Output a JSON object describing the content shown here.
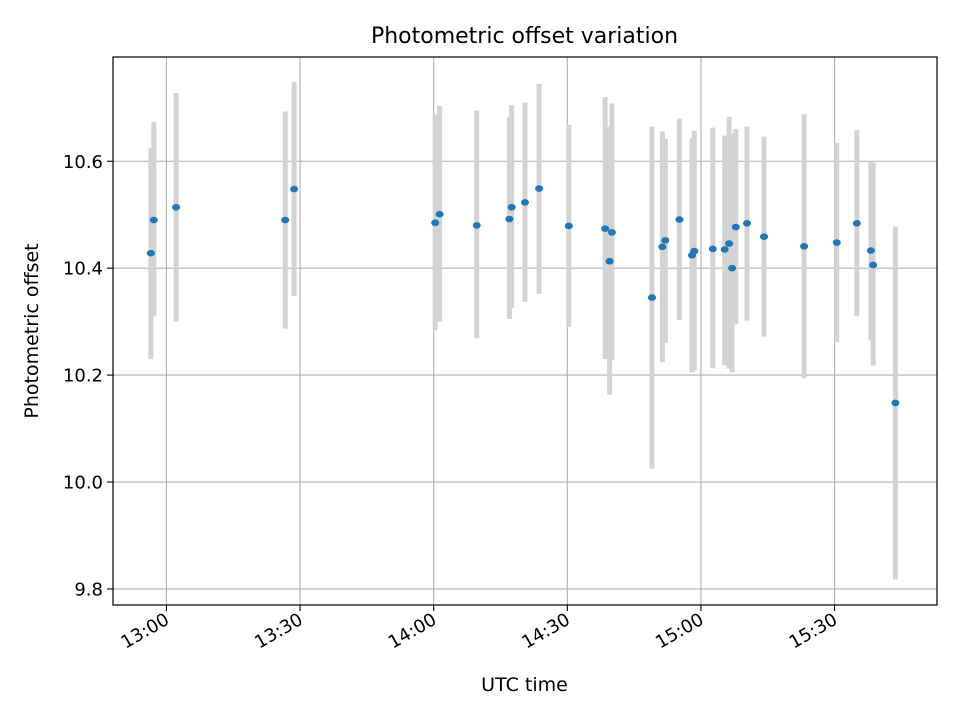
{
  "chart_data": {
    "type": "scatter",
    "title": "Photometric offset variation",
    "xlabel": "UTC time",
    "ylabel": "Photometric offset",
    "xlim": [
      "12:48",
      "15:53"
    ],
    "ylim": [
      9.77,
      10.795
    ],
    "grid": true,
    "x_ticks": [
      "13:00",
      "13:30",
      "14:00",
      "14:30",
      "15:00",
      "15:30"
    ],
    "y_ticks": [
      "9.8",
      "10.0",
      "10.2",
      "10.4",
      "10.6"
    ],
    "errorbar_color": "#d3d3d3",
    "marker_color": "#1f77b4",
    "points": [
      {
        "t": "12:56:30",
        "y": 10.428,
        "lo": 10.23,
        "hi": 10.625
      },
      {
        "t": "12:57:10",
        "y": 10.49,
        "lo": 10.31,
        "hi": 10.673
      },
      {
        "t": "13:02:10",
        "y": 10.514,
        "lo": 10.3,
        "hi": 10.728
      },
      {
        "t": "13:26:40",
        "y": 10.49,
        "lo": 10.287,
        "hi": 10.693
      },
      {
        "t": "13:28:40",
        "y": 10.548,
        "lo": 10.348,
        "hi": 10.748
      },
      {
        "t": "14:00:20",
        "y": 10.485,
        "lo": 10.284,
        "hi": 10.688
      },
      {
        "t": "14:01:20",
        "y": 10.501,
        "lo": 10.3,
        "hi": 10.703
      },
      {
        "t": "14:09:40",
        "y": 10.48,
        "lo": 10.269,
        "hi": 10.695
      },
      {
        "t": "14:17:00",
        "y": 10.492,
        "lo": 10.305,
        "hi": 10.683
      },
      {
        "t": "14:17:30",
        "y": 10.514,
        "lo": 10.325,
        "hi": 10.705
      },
      {
        "t": "14:20:30",
        "y": 10.523,
        "lo": 10.337,
        "hi": 10.71
      },
      {
        "t": "14:23:40",
        "y": 10.549,
        "lo": 10.352,
        "hi": 10.745
      },
      {
        "t": "14:30:20",
        "y": 10.479,
        "lo": 10.29,
        "hi": 10.668
      },
      {
        "t": "14:38:30",
        "y": 10.474,
        "lo": 10.23,
        "hi": 10.72
      },
      {
        "t": "14:39:30",
        "y": 10.413,
        "lo": 10.163,
        "hi": 10.665
      },
      {
        "t": "14:40:00",
        "y": 10.467,
        "lo": 10.228,
        "hi": 10.708
      },
      {
        "t": "14:49:00",
        "y": 10.345,
        "lo": 10.025,
        "hi": 10.665
      },
      {
        "t": "14:51:20",
        "y": 10.44,
        "lo": 10.224,
        "hi": 10.656
      },
      {
        "t": "14:52:00",
        "y": 10.452,
        "lo": 10.26,
        "hi": 10.642
      },
      {
        "t": "14:55:10",
        "y": 10.491,
        "lo": 10.303,
        "hi": 10.68
      },
      {
        "t": "14:58:00",
        "y": 10.424,
        "lo": 10.205,
        "hi": 10.643
      },
      {
        "t": "14:58:30",
        "y": 10.432,
        "lo": 10.209,
        "hi": 10.657
      },
      {
        "t": "15:02:40",
        "y": 10.436,
        "lo": 10.213,
        "hi": 10.663
      },
      {
        "t": "15:05:20",
        "y": 10.435,
        "lo": 10.218,
        "hi": 10.648
      },
      {
        "t": "15:06:20",
        "y": 10.446,
        "lo": 10.212,
        "hi": 10.683
      },
      {
        "t": "15:07:00",
        "y": 10.4,
        "lo": 10.205,
        "hi": 10.652
      },
      {
        "t": "15:07:50",
        "y": 10.477,
        "lo": 10.295,
        "hi": 10.66
      },
      {
        "t": "15:10:20",
        "y": 10.484,
        "lo": 10.302,
        "hi": 10.665
      },
      {
        "t": "15:14:10",
        "y": 10.459,
        "lo": 10.272,
        "hi": 10.646
      },
      {
        "t": "15:23:10",
        "y": 10.441,
        "lo": 10.194,
        "hi": 10.688
      },
      {
        "t": "15:30:30",
        "y": 10.448,
        "lo": 10.262,
        "hi": 10.634
      },
      {
        "t": "15:35:00",
        "y": 10.484,
        "lo": 10.31,
        "hi": 10.658
      },
      {
        "t": "15:38:10",
        "y": 10.433,
        "lo": 10.265,
        "hi": 10.6
      },
      {
        "t": "15:38:40",
        "y": 10.406,
        "lo": 10.218,
        "hi": 10.597
      },
      {
        "t": "15:43:40",
        "y": 10.148,
        "lo": 9.818,
        "hi": 10.478
      }
    ]
  }
}
